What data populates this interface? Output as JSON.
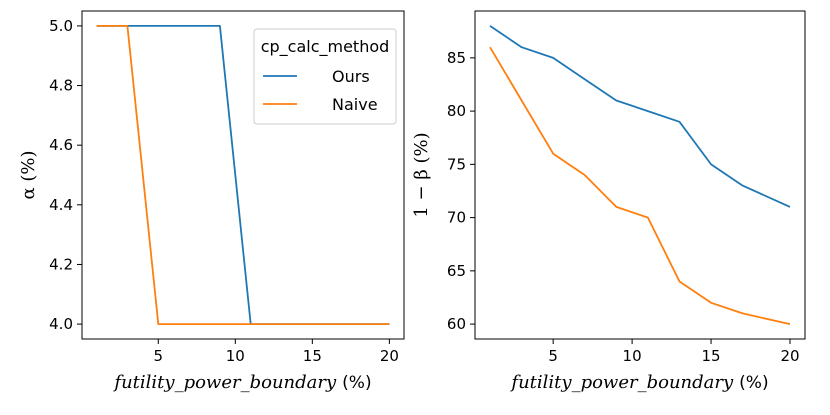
{
  "chart_data": [
    {
      "type": "line",
      "x": [
        1,
        3,
        5,
        7,
        9,
        11,
        13,
        15,
        17,
        20
      ],
      "series": [
        {
          "name": "Ours",
          "color": "#1f77b4",
          "values": [
            5.0,
            5.0,
            5.0,
            5.0,
            5.0,
            4.0,
            4.0,
            4.0,
            4.0,
            4.0
          ]
        },
        {
          "name": "Naive",
          "color": "#ff7f0e",
          "values": [
            5.0,
            5.0,
            4.0,
            4.0,
            4.0,
            4.0,
            4.0,
            4.0,
            4.0,
            4.0
          ]
        }
      ],
      "xlabel": "futility_power_boundary",
      "xlabel_unit": "(%)",
      "ylabel": "α (%)",
      "xlim": [
        0.05,
        20.95
      ],
      "ylim": [
        3.95,
        5.05
      ],
      "xticks": [
        5,
        10,
        15,
        20
      ],
      "xtick_labels": [
        "5",
        "10",
        "15",
        "20"
      ],
      "yticks": [
        4.0,
        4.2,
        4.4,
        4.6,
        4.8,
        5.0
      ],
      "ytick_labels": [
        "4.0",
        "4.2",
        "4.4",
        "4.6",
        "4.8",
        "5.0"
      ],
      "legend": {
        "title": "cp_calc_method",
        "entries": [
          "Ours",
          "Naive"
        ],
        "placement": "top-right"
      },
      "grid": false
    },
    {
      "type": "line",
      "x": [
        1,
        3,
        5,
        7,
        9,
        11,
        13,
        15,
        17,
        20
      ],
      "series": [
        {
          "name": "Ours",
          "color": "#1f77b4",
          "values": [
            88,
            86,
            85,
            83,
            81,
            80,
            79,
            75,
            73,
            71
          ]
        },
        {
          "name": "Naive",
          "color": "#ff7f0e",
          "values": [
            86,
            81,
            76,
            74,
            71,
            70,
            64,
            62,
            61,
            60
          ]
        }
      ],
      "xlabel": "futility_power_boundary",
      "xlabel_unit": "(%)",
      "ylabel": "1 − β (%)",
      "xlim": [
        0.05,
        20.95
      ],
      "ylim": [
        58.6,
        89.4
      ],
      "xticks": [
        5,
        10,
        15,
        20
      ],
      "xtick_labels": [
        "5",
        "10",
        "15",
        "20"
      ],
      "yticks": [
        60,
        65,
        70,
        75,
        80,
        85
      ],
      "ytick_labels": [
        "60",
        "65",
        "70",
        "75",
        "80",
        "85"
      ],
      "grid": false
    }
  ]
}
